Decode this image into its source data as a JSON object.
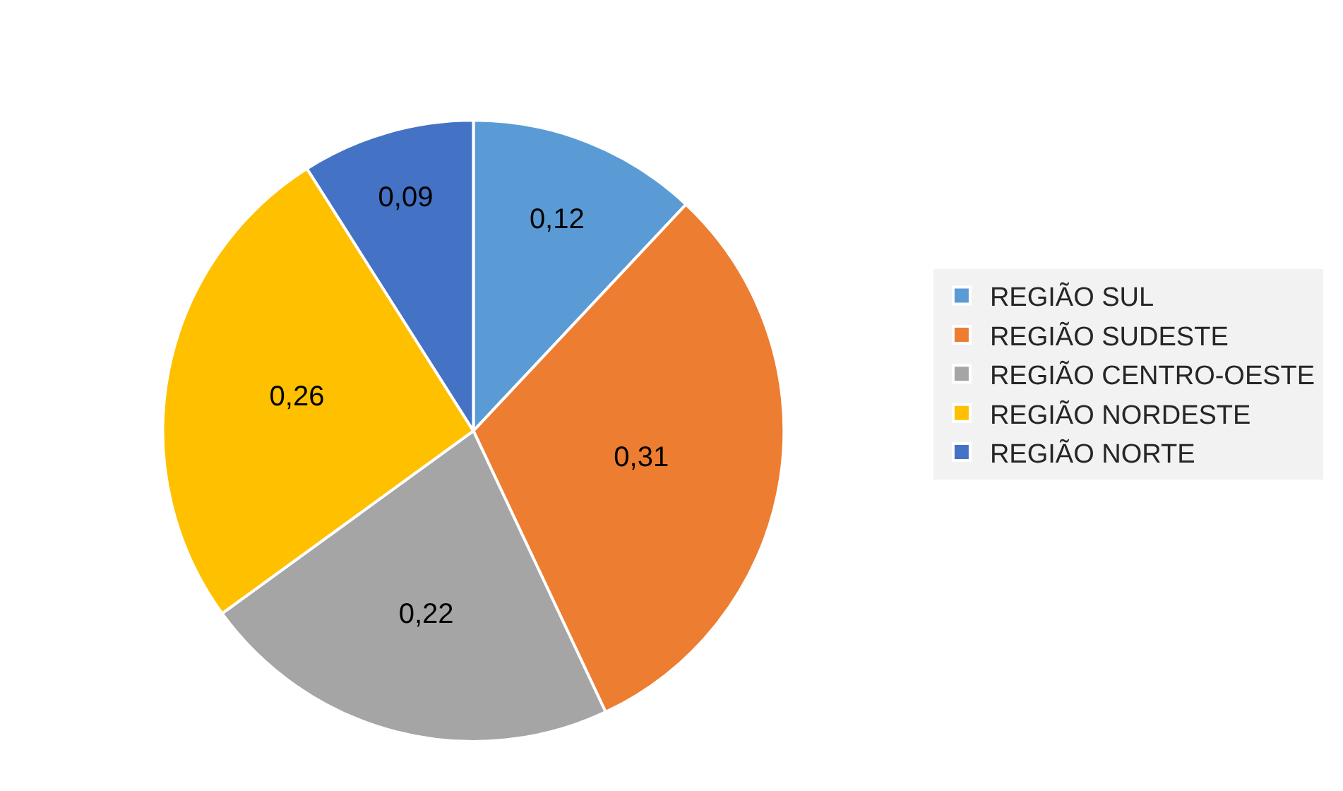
{
  "chart_data": {
    "type": "pie",
    "categories": [
      "REGIÃO SUL",
      "REGIÃO SUDESTE",
      "REGIÃO CENTRO-OESTE",
      "REGIÃO NORDESTE",
      "REGIÃO NORTE"
    ],
    "values": [
      0.12,
      0.31,
      0.22,
      0.26,
      0.09
    ],
    "value_labels": [
      "0,12",
      "0,31",
      "0,22",
      "0,26",
      "0,09"
    ],
    "colors": [
      "#5b9bd5",
      "#ed7d31",
      "#a5a5a5",
      "#ffc000",
      "#4472c4"
    ],
    "legend": "right"
  }
}
